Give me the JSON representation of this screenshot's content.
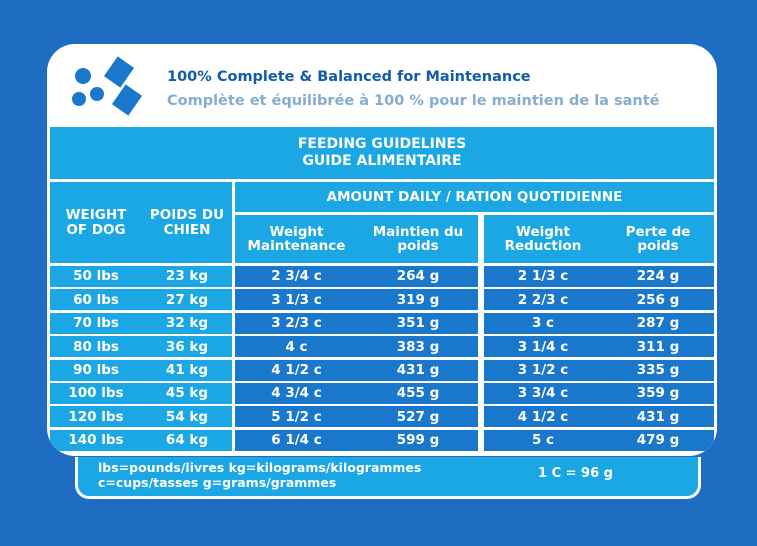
{
  "header": {
    "title_en": "100% Complete & Balanced for Maintenance",
    "title_fr": "Complète et équilibrée à 100 % pour le maintien de la santé",
    "icon": "food-and-cup-icon"
  },
  "table": {
    "title_en": "FEEDING GUIDELINES",
    "title_fr": "GUIDE ALIMENTAIRE",
    "amount_header": "AMOUNT DAILY / RATION QUOTIDIENNE",
    "columns": [
      "WEIGHT OF DOG",
      "POIDS DU CHIEN",
      "Weight Maintenance",
      "Maintien du poids",
      "Weight Reduction",
      "Perte de poids"
    ],
    "rows": [
      [
        "50 lbs",
        "23 kg",
        "2 3/4 c",
        "264 g",
        "2 1/3 c",
        "224 g"
      ],
      [
        "60 lbs",
        "27 kg",
        "3 1/3 c",
        "319 g",
        "2 2/3 c",
        "256 g"
      ],
      [
        "70 lbs",
        "32 kg",
        "3 2/3 c",
        "351 g",
        "3 c",
        "287 g"
      ],
      [
        "80 lbs",
        "36 kg",
        "4 c",
        "383 g",
        "3 1/4 c",
        "311 g"
      ],
      [
        "90 lbs",
        "41 kg",
        "4 1/2 c",
        "431 g",
        "3 1/2 c",
        "335 g"
      ],
      [
        "100 lbs",
        "45 kg",
        "4 3/4 c",
        "455 g",
        "3 3/4 c",
        "359 g"
      ],
      [
        "120 lbs",
        "54 kg",
        "5 1/2 c",
        "527 g",
        "4 1/2 c",
        "431 g"
      ],
      [
        "140 lbs",
        "64 kg",
        "6 1/4 c",
        "599 g",
        "5 c",
        "479 g"
      ]
    ]
  },
  "footer": {
    "legend1": "lbs=pounds/livres kg=kilograms/kilogrammes",
    "legend2": "c=cups/tasses g=grams/grammes",
    "conversion": "1 C = 96 g"
  },
  "colors": {
    "background": "#1e6dc3",
    "light_blue": "#1ba7e3",
    "dark_blue": "#1a78cc",
    "title": "#115ba8"
  }
}
